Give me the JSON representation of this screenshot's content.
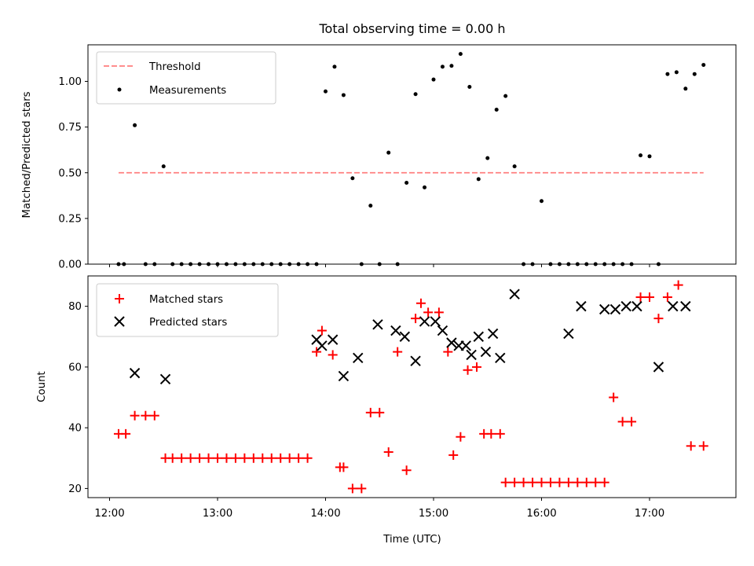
{
  "chart_data": [
    {
      "type": "scatter",
      "title": "Total observing time = 0.00 h",
      "xlabel": "",
      "ylabel": "Matched/Predicted stars",
      "ylim": [
        0,
        1.2
      ],
      "yticks": [
        "0.00",
        "0.25",
        "0.50",
        "0.75",
        "1.00"
      ],
      "grid": false,
      "legend_position": "top-left",
      "series": [
        {
          "name": "Threshold",
          "kind": "line",
          "color": "#ff7f7f",
          "x": [
            "12:05",
            "17:30"
          ],
          "y": [
            0.5,
            0.5
          ]
        },
        {
          "name": "Measurements",
          "kind": "scatter",
          "color": "#000000",
          "x": [
            "12:05",
            "12:08",
            "12:14",
            "12:20",
            "12:25",
            "12:30",
            "12:35",
            "12:40",
            "12:45",
            "12:50",
            "12:55",
            "13:00",
            "13:05",
            "13:10",
            "13:15",
            "13:20",
            "13:25",
            "13:30",
            "13:35",
            "13:40",
            "13:45",
            "13:50",
            "13:55",
            "14:00",
            "14:05",
            "14:10",
            "14:15",
            "14:20",
            "14:25",
            "14:30",
            "14:35",
            "14:40",
            "14:45",
            "14:50",
            "14:55",
            "15:00",
            "15:05",
            "15:10",
            "15:15",
            "15:20",
            "15:25",
            "15:30",
            "15:35",
            "15:40",
            "15:45",
            "15:50",
            "15:55",
            "16:00",
            "16:05",
            "16:10",
            "16:15",
            "16:20",
            "16:25",
            "16:30",
            "16:35",
            "16:40",
            "16:45",
            "16:50",
            "16:55",
            "17:00",
            "17:05",
            "17:10",
            "17:15",
            "17:20",
            "17:25",
            "17:30"
          ],
          "y": [
            0,
            0,
            0.76,
            0,
            0,
            0.535,
            0,
            0,
            0,
            0,
            0,
            0,
            0,
            0,
            0,
            0,
            0,
            0,
            0,
            0,
            0,
            0,
            0,
            0.945,
            1.08,
            0.925,
            0.47,
            0,
            0.32,
            0,
            0.61,
            0,
            0.445,
            0.93,
            0.42,
            1.01,
            1.08,
            1.085,
            1.15,
            0.97,
            0.465,
            0.58,
            0.845,
            0.92,
            0.535,
            0,
            0,
            0.345,
            0,
            0,
            0,
            0,
            0,
            0,
            0,
            0,
            0,
            0,
            0.595,
            0.59,
            0,
            1.04,
            1.05,
            0.96,
            1.04,
            1.09
          ]
        }
      ]
    },
    {
      "type": "scatter",
      "title": "",
      "xlabel": "Time (UTC)",
      "ylabel": "Count",
      "xlim": [
        "11:48",
        "17:48"
      ],
      "xticks": [
        "12:00",
        "13:00",
        "14:00",
        "15:00",
        "16:00",
        "17:00"
      ],
      "ylim": [
        17,
        90
      ],
      "yticks": [
        "20",
        "40",
        "60",
        "80"
      ],
      "grid": false,
      "legend_position": "top-left",
      "series": [
        {
          "name": "Matched stars",
          "marker": "+",
          "color": "#ff0000",
          "x": [
            "12:05",
            "12:09",
            "12:14",
            "12:20",
            "12:25",
            "12:31",
            "12:35",
            "12:40",
            "12:45",
            "12:50",
            "12:55",
            "13:00",
            "13:05",
            "13:10",
            "13:15",
            "13:20",
            "13:25",
            "13:30",
            "13:35",
            "13:40",
            "13:45",
            "13:50",
            "13:55",
            "13:58",
            "14:04",
            "14:08",
            "14:10",
            "14:15",
            "14:20",
            "14:25",
            "14:30",
            "14:35",
            "14:40",
            "14:45",
            "14:50",
            "14:53",
            "14:57",
            "15:03",
            "15:08",
            "15:11",
            "15:15",
            "15:19",
            "15:24",
            "15:28",
            "15:32",
            "15:37",
            "15:40",
            "15:45",
            "15:50",
            "15:55",
            "16:00",
            "16:05",
            "16:10",
            "16:15",
            "16:20",
            "16:25",
            "16:30",
            "16:35",
            "16:40",
            "16:45",
            "16:50",
            "16:55",
            "17:00",
            "17:05",
            "17:10",
            "17:16",
            "17:23",
            "17:30"
          ],
          "y": [
            38,
            38,
            44,
            44,
            44,
            30,
            30,
            30,
            30,
            30,
            30,
            30,
            30,
            30,
            30,
            30,
            30,
            30,
            30,
            30,
            30,
            30,
            65,
            72,
            64,
            27,
            27,
            20,
            20,
            45,
            45,
            32,
            65,
            26,
            76,
            81,
            78,
            78,
            65,
            31,
            37,
            59,
            60,
            38,
            38,
            38,
            22,
            22,
            22,
            22,
            22,
            22,
            22,
            22,
            22,
            22,
            22,
            22,
            50,
            42,
            42,
            83,
            83,
            76,
            83,
            87,
            34,
            34
          ]
        },
        {
          "name": "Predicted stars",
          "marker": "x",
          "color": "#000000",
          "x": [
            "12:14",
            "12:31",
            "13:55",
            "13:58",
            "14:04",
            "14:10",
            "14:18",
            "14:29",
            "14:39",
            "14:44",
            "14:50",
            "14:55",
            "15:01",
            "15:05",
            "15:10",
            "15:14",
            "15:18",
            "15:21",
            "15:25",
            "15:29",
            "15:33",
            "15:37",
            "15:45",
            "16:15",
            "16:22",
            "16:35",
            "16:41",
            "16:47",
            "16:53",
            "17:05",
            "17:13",
            "17:20"
          ],
          "y": [
            58,
            56,
            69,
            67,
            69,
            57,
            63,
            74,
            72,
            70,
            62,
            75,
            75,
            72,
            68,
            67,
            67,
            64,
            70,
            65,
            71,
            63,
            84,
            71,
            80,
            79,
            79,
            80,
            80,
            60,
            80,
            80
          ]
        }
      ]
    }
  ]
}
